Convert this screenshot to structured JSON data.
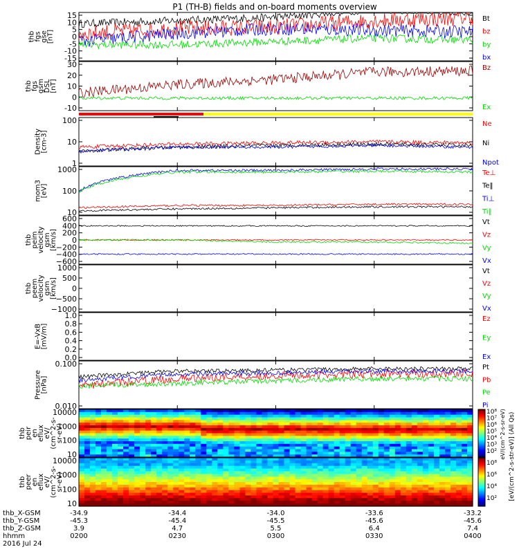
{
  "title": "P1 (TH-B) fields and on-board moments overview",
  "colors": {
    "black": "#000000",
    "red": "#ff0000",
    "green": "#00dd00",
    "blue": "#0000ff",
    "darkred": "#990000",
    "yellow": "#ffff00"
  },
  "panels": [
    {
      "id": "fgs-gse",
      "ylabel": [
        "thb",
        "fgs",
        "gse",
        "[nT]"
      ],
      "ticks": [
        "15",
        "10",
        "5",
        "0",
        "-5",
        "-10",
        "-15"
      ],
      "ylim": [
        -15,
        15
      ],
      "legend": [
        {
          "text": "Bt",
          "color": "#000000"
        },
        {
          "text": "bz",
          "color": "#ff0000"
        },
        {
          "text": "by",
          "color": "#00dd00"
        },
        {
          "text": "bx",
          "color": "#0000ff"
        }
      ]
    },
    {
      "id": "fgs-gsm",
      "ylabel": [
        "thb",
        "fgs",
        "gsm",
        "DSL",
        "[nT]"
      ],
      "ticks": [
        "30",
        "20",
        "10",
        "0",
        "-10"
      ],
      "ylim": [
        -15,
        32
      ],
      "legend": [
        {
          "text": "Bz",
          "color": "#990000"
        },
        {
          "text": "Ex",
          "color": "#00dd00"
        }
      ]
    },
    {
      "id": "density",
      "ylabel": [
        "Density",
        "[cm-3]"
      ],
      "ticks": [
        "100",
        "10",
        "1"
      ],
      "log": true,
      "ylim": [
        1,
        100
      ],
      "legend": [
        {
          "text": "Ne",
          "color": "#ff0000"
        },
        {
          "text": "Ni",
          "color": "#000000"
        },
        {
          "text": "Npot",
          "color": "#0000ff"
        }
      ]
    },
    {
      "id": "temp",
      "ylabel": [
        "mom3",
        "[eV]"
      ],
      "ticks": [
        "1000",
        "100",
        "10"
      ],
      "log": true,
      "ylim": [
        10,
        1000
      ],
      "legend": [
        {
          "text": "Te⊥",
          "color": "#ff0000"
        },
        {
          "text": "Te‖",
          "color": "#000000"
        },
        {
          "text": "Ti⊥",
          "color": "#0000ff"
        },
        {
          "text": "Ti‖",
          "color": "#00dd00"
        }
      ]
    },
    {
      "id": "peim-vel",
      "ylabel": [
        "thb",
        "peim",
        "velocity",
        "gsm",
        "[km/s]"
      ],
      "ticks": [
        "600",
        "400",
        "200",
        "0",
        "−200",
        "−400",
        "−600"
      ],
      "ylim": [
        -600,
        600
      ],
      "legend": [
        {
          "text": "Vt",
          "color": "#000000"
        },
        {
          "text": "Vz",
          "color": "#ff0000"
        },
        {
          "text": "Vy",
          "color": "#00dd00"
        },
        {
          "text": "Vx",
          "color": "#0000ff"
        }
      ]
    },
    {
      "id": "peem-vel",
      "ylabel": [
        "thb",
        "peem",
        "velocity",
        "gsm",
        "[km/s]"
      ],
      "ticks": [
        "1000",
        "500",
        "0",
        "−500",
        "−1000"
      ],
      "ylim": [
        -1000,
        1000
      ],
      "legend": [
        {
          "text": "Vt",
          "color": "#000000"
        },
        {
          "text": "Vz",
          "color": "#ff0000"
        },
        {
          "text": "Vy",
          "color": "#00dd00"
        },
        {
          "text": "Vx",
          "color": "#0000ff"
        }
      ]
    },
    {
      "id": "efield",
      "ylabel": [
        "E=-VxB",
        "[mV/m]"
      ],
      "ticks": [
        "1.0",
        "0.8",
        "0.6",
        "0.4",
        "0.2",
        "0.0"
      ],
      "ylim": [
        0,
        1
      ],
      "legend": [
        {
          "text": "Ez",
          "color": "#ff0000"
        },
        {
          "text": "Ey",
          "color": "#00dd00"
        },
        {
          "text": "Ex",
          "color": "#0000ff"
        }
      ]
    },
    {
      "id": "pressure",
      "ylabel": [
        "Pressure",
        "[nPa]"
      ],
      "ticks": [
        "0.100",
        "0.010"
      ],
      "log": true,
      "ylim": [
        0.004,
        0.3
      ],
      "legend": [
        {
          "text": "Pt",
          "color": "#000000"
        },
        {
          "text": "Pb",
          "color": "#ff0000"
        },
        {
          "text": "Pe",
          "color": "#00dd00"
        },
        {
          "text": "Pi",
          "color": "#0000ff"
        }
      ]
    },
    {
      "id": "peir",
      "ylabel": [
        "thb",
        "peir",
        "en",
        "eflux",
        "eV/",
        "(cm^2-s-",
        "sr-eV)"
      ],
      "ticks": [
        "10000",
        "1000",
        "100",
        "10"
      ],
      "log": true,
      "ylim": [
        5,
        20000
      ]
    },
    {
      "id": "peer",
      "ylabel": [
        "thb",
        "peer",
        "en",
        "eflux",
        "eV/",
        "(cm^2-s-",
        "sr-eV)"
      ],
      "ticks": [
        "10000",
        "1000",
        "100",
        "10"
      ],
      "log": true,
      "ylim": [
        5,
        20000
      ]
    }
  ],
  "colorbar": {
    "label": "[eV/(cm^2-s-str-eV)] (All Qs)",
    "label_top": "eV/(cm^2-s-sr-eV)",
    "ticks_top": [
      "10⁸",
      "10⁷",
      "10⁶",
      "10⁵",
      "10⁴",
      "10³",
      "10²"
    ],
    "ticks_bottom": [
      "10⁸",
      "10⁶",
      "10⁴",
      "10²"
    ]
  },
  "xaxis": {
    "rows": [
      {
        "label": "thb_X-GSM",
        "values": [
          "-34.9",
          "-34.4",
          "-34.0",
          "-33.6",
          "-33.2"
        ]
      },
      {
        "label": "thb_Y-GSM",
        "values": [
          "-45.3",
          "-45.4",
          "-45.5",
          "-45.6",
          "-45.6"
        ]
      },
      {
        "label": "thb_Z-GSM",
        "values": [
          "3.9",
          "4.7",
          "5.5",
          "6.4",
          "7.4"
        ]
      },
      {
        "label": "hhmm",
        "values": [
          "0200",
          "0230",
          "0300",
          "0330",
          "0400"
        ]
      }
    ],
    "date": "2016 Jul 24"
  },
  "chart_data": {
    "type": "line",
    "x": [
      "0200",
      "0230",
      "0300",
      "0330",
      "0400"
    ],
    "series": [
      {
        "name": "Bt",
        "panel": "fgs-gse",
        "values": [
          8,
          10,
          12,
          17,
          15
        ]
      },
      {
        "name": "bz",
        "panel": "fgs-gse",
        "values": [
          2,
          5,
          6,
          10,
          12
        ]
      },
      {
        "name": "by",
        "panel": "fgs-gse",
        "values": [
          -5,
          -5,
          -3,
          -1,
          -2
        ]
      },
      {
        "name": "bx",
        "panel": "fgs-gse",
        "values": [
          -3,
          2,
          5,
          4,
          3
        ]
      },
      {
        "name": "Bz",
        "panel": "fgs-gsm",
        "values": [
          2,
          10,
          15,
          22,
          23
        ]
      },
      {
        "name": "Ex",
        "panel": "fgs-gsm",
        "values": [
          -3,
          -3,
          -3,
          -3,
          -3
        ]
      },
      {
        "name": "Ne",
        "panel": "density",
        "values": [
          6,
          8,
          9,
          10,
          9
        ]
      },
      {
        "name": "Ni",
        "panel": "density",
        "values": [
          4,
          6,
          7,
          8,
          7
        ]
      },
      {
        "name": "Npot",
        "panel": "density",
        "values": [
          4,
          6,
          6,
          7,
          6
        ]
      },
      {
        "name": "Te⊥",
        "panel": "temp",
        "values": [
          20,
          25,
          25,
          28,
          28
        ]
      },
      {
        "name": "Te‖",
        "panel": "temp",
        "values": [
          15,
          18,
          20,
          22,
          22
        ]
      },
      {
        "name": "Ti⊥",
        "panel": "temp",
        "values": [
          100,
          700,
          700,
          800,
          800
        ]
      },
      {
        "name": "Ti‖",
        "panel": "temp",
        "values": [
          90,
          600,
          600,
          650,
          600
        ]
      },
      {
        "name": "Vt",
        "panel": "peim-vel",
        "values": [
          350,
          350,
          350,
          350,
          350
        ]
      },
      {
        "name": "Vz",
        "panel": "peim-vel",
        "values": [
          0,
          0,
          0,
          0,
          0
        ]
      },
      {
        "name": "Vy",
        "panel": "peim-vel",
        "values": [
          0,
          0,
          -50,
          -50,
          -80
        ]
      },
      {
        "name": "Vx",
        "panel": "peim-vel",
        "values": [
          -350,
          -350,
          -350,
          -350,
          -350
        ]
      },
      {
        "name": "Pt",
        "panel": "pressure",
        "values": [
          0.07,
          0.12,
          0.13,
          0.15,
          0.15
        ]
      },
      {
        "name": "Pb",
        "panel": "pressure",
        "values": [
          0.03,
          0.06,
          0.08,
          0.09,
          0.1
        ]
      },
      {
        "name": "Pe",
        "panel": "pressure",
        "values": [
          0.03,
          0.04,
          0.05,
          0.06,
          0.06
        ]
      },
      {
        "name": "Pi",
        "panel": "pressure",
        "values": [
          0.05,
          0.09,
          0.1,
          0.12,
          0.12
        ]
      }
    ]
  }
}
